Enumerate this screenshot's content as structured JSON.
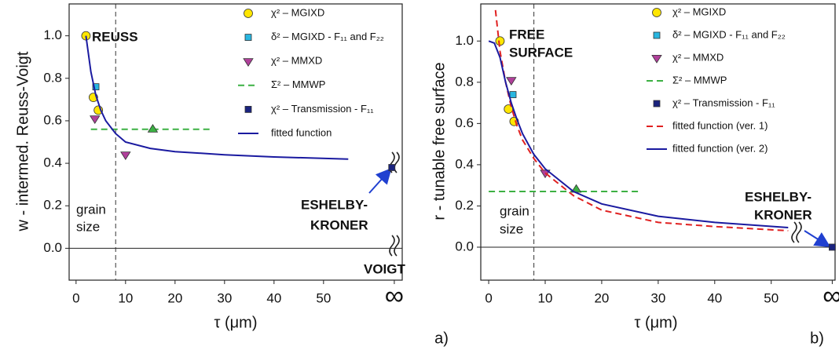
{
  "chart_data": [
    {
      "type": "scatter",
      "x_label": "τ  (μm)",
      "y_label": "w - intermed. Reuss-Voigt",
      "label": "a)",
      "xlim": [
        -1.4,
        65.9
      ],
      "ylim": [
        -0.15,
        1.15
      ],
      "xticks": [
        0,
        10,
        20,
        30,
        40,
        50,
        {
          "value": 64.3,
          "label": "∞"
        }
      ],
      "yticks": [
        {
          "value": 0,
          "label": "0.0"
        },
        0.2,
        0.4,
        0.6,
        0.8,
        {
          "value": 1,
          "label": "1.0"
        }
      ],
      "vlines": [
        8
      ],
      "hlines": [
        0
      ],
      "annotations": [
        "REUSS",
        "grain",
        "size",
        "ESHELBY-",
        "KRONER",
        "VOIGT"
      ],
      "series": [
        {
          "name": "χ² – MGIXD",
          "color": "#ffe600",
          "marker": "circle",
          "x": [
            2,
            3.5,
            4.5
          ],
          "values": [
            1.0,
            0.71,
            0.65
          ]
        },
        {
          "name": "δ² – MGIXD  - F₁₁ and F₂₂",
          "color": "#29b6e0",
          "marker": "square",
          "x": [
            4
          ],
          "values": [
            0.76
          ]
        },
        {
          "name": "χ² – MMXD",
          "color": "#b0409a",
          "marker": "triangle-down",
          "x": [
            3.8,
            10
          ],
          "values": [
            0.61,
            0.44
          ]
        },
        {
          "name": "Σ² – MMWP",
          "color": "#3cb043",
          "line": "dashed",
          "x": [
            3,
            27
          ],
          "values": [
            0.56,
            0.56
          ]
        },
        {
          "color": "#3cb043",
          "marker": "triangle-up",
          "x": [
            15.5
          ],
          "values": [
            0.56
          ]
        },
        {
          "name": "χ² – Transmission - F₁₁",
          "color": "#1a237e",
          "marker": "square",
          "x": [
            63.8
          ],
          "values": [
            0.38
          ]
        },
        {
          "name": "fitted function",
          "color": "#1a1aa0",
          "line": "solid",
          "x": [
            2,
            3,
            4,
            5,
            6,
            8,
            10,
            15,
            20,
            30,
            40,
            55
          ],
          "values": [
            1.0,
            0.83,
            0.72,
            0.65,
            0.6,
            0.54,
            0.5,
            0.47,
            0.455,
            0.44,
            0.43,
            0.42
          ]
        }
      ]
    },
    {
      "type": "scatter",
      "x_label": "τ  (μm)",
      "y_label": "r - tunable free surface",
      "label": "b)",
      "xlim": [
        -1.4,
        61.3
      ],
      "ylim": [
        -0.16,
        1.18
      ],
      "xticks": [
        0,
        10,
        20,
        30,
        40,
        50,
        {
          "value": 60.8,
          "label": "∞"
        }
      ],
      "yticks": [
        {
          "value": 0,
          "label": "0.0"
        },
        0.2,
        0.4,
        0.6,
        0.8,
        {
          "value": 1,
          "label": "1.0"
        }
      ],
      "vlines": [
        8
      ],
      "hlines": [
        0
      ],
      "annotations": [
        "FREE",
        "SURFACE",
        "grain",
        "size",
        "ESHELBY-",
        "KRONER"
      ],
      "series": [
        {
          "name": "χ² – MGIXD",
          "color": "#ffe600",
          "marker": "circle",
          "x": [
            2,
            3.5,
            4.5
          ],
          "values": [
            1.0,
            0.67,
            0.61
          ]
        },
        {
          "name": "δ² – MGIXD  - F₁₁ and F₂₂",
          "color": "#29b6e0",
          "marker": "square",
          "x": [
            4.3
          ],
          "values": [
            0.74
          ]
        },
        {
          "name": "χ² – MMXD",
          "color": "#b0409a",
          "marker": "triangle-down",
          "x": [
            4,
            10
          ],
          "values": [
            0.81,
            0.36
          ]
        },
        {
          "name": "Σ² – MMWP",
          "color": "#3cb043",
          "line": "dashed",
          "x": [
            0,
            27
          ],
          "values": [
            0.27,
            0.27
          ]
        },
        {
          "color": "#3cb043",
          "marker": "triangle-up",
          "x": [
            15.5
          ],
          "values": [
            0.28
          ]
        },
        {
          "name": "χ² – Transmission - F₁₁",
          "color": "#1a237e",
          "marker": "square",
          "x": [
            60.8
          ],
          "values": [
            0.0
          ]
        },
        {
          "name": "fitted function (ver. 1)",
          "color": "#e02020",
          "line": "dashed",
          "x": [
            1.2,
            2,
            3,
            4,
            5,
            6,
            8,
            10,
            15,
            20,
            30,
            40,
            53
          ],
          "values": [
            1.15,
            0.95,
            0.8,
            0.68,
            0.59,
            0.52,
            0.43,
            0.36,
            0.25,
            0.18,
            0.12,
            0.1,
            0.08
          ]
        },
        {
          "name": "fitted function (ver. 2)",
          "color": "#1a1aa0",
          "line": "solid",
          "x": [
            0,
            1,
            2,
            3,
            4,
            5,
            6,
            8,
            10,
            15,
            20,
            30,
            40,
            53
          ],
          "values": [
            1.0,
            0.99,
            0.92,
            0.8,
            0.7,
            0.62,
            0.55,
            0.45,
            0.38,
            0.27,
            0.21,
            0.15,
            0.12,
            0.095
          ]
        }
      ]
    }
  ]
}
